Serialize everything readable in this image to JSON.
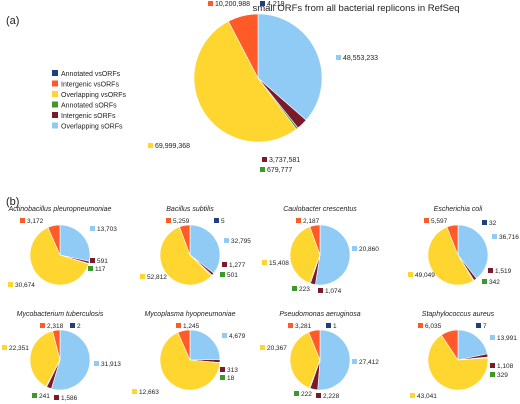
{
  "panel_a_label": "(a)",
  "panel_b_label": "(b)",
  "colors": {
    "annotated_vsorfs": "#1f3f7f",
    "intergenic_vsorfs": "#ff5a28",
    "overlapping_vsorfs": "#ffd530",
    "annotated_sorfs": "#3b9a2a",
    "intergenic_sorfs": "#7a1a2a",
    "overlapping_sorfs": "#8fcbf5"
  },
  "chart_data": [
    {
      "type": "pie",
      "title": "small ORFs from all bacterial replicons in RefSeq",
      "legend_placement": "left",
      "legend": [
        {
          "key": "annotated_vsorfs",
          "label": "Annotated vsORFs"
        },
        {
          "key": "intergenic_vsorfs",
          "label": "Intergenic vsORFs"
        },
        {
          "key": "overlapping_vsorfs",
          "label": "Overlapping vsORFs"
        },
        {
          "key": "annotated_sorfs",
          "label": "Annotated sORFs"
        },
        {
          "key": "intergenic_sorfs",
          "label": "Intergenic sORFs"
        },
        {
          "key": "overlapping_sorfs",
          "label": "Overlapping sORFs"
        }
      ],
      "slices": [
        {
          "key": "annotated_vsorfs",
          "value": 4219,
          "label": "4,219"
        },
        {
          "key": "overlapping_sorfs",
          "value": 48553233,
          "label": "48,553,233"
        },
        {
          "key": "intergenic_sorfs",
          "value": 3737581,
          "label": "3,737,581"
        },
        {
          "key": "annotated_sorfs",
          "value": 679777,
          "label": "679,777"
        },
        {
          "key": "overlapping_vsorfs",
          "value": 69999368,
          "label": "69,999,368"
        },
        {
          "key": "intergenic_vsorfs",
          "value": 10200988,
          "label": "10,200,988"
        }
      ]
    },
    {
      "type": "pie",
      "title": "Actinobacillus pleuropneumoniae",
      "slices": [
        {
          "key": "annotated_vsorfs",
          "value": 0,
          "label": ""
        },
        {
          "key": "overlapping_sorfs",
          "value": 13703,
          "label": "13,703"
        },
        {
          "key": "intergenic_sorfs",
          "value": 591,
          "label": "591"
        },
        {
          "key": "annotated_sorfs",
          "value": 117,
          "label": "117"
        },
        {
          "key": "overlapping_vsorfs",
          "value": 30674,
          "label": "30,674"
        },
        {
          "key": "intergenic_vsorfs",
          "value": 3172,
          "label": "3,172"
        }
      ]
    },
    {
      "type": "pie",
      "title": "Bacillus subtilis",
      "slices": [
        {
          "key": "annotated_vsorfs",
          "value": 5,
          "label": "5"
        },
        {
          "key": "overlapping_sorfs",
          "value": 32795,
          "label": "32,795"
        },
        {
          "key": "intergenic_sorfs",
          "value": 1277,
          "label": "1,277"
        },
        {
          "key": "annotated_sorfs",
          "value": 501,
          "label": "501"
        },
        {
          "key": "overlapping_vsorfs",
          "value": 52812,
          "label": "52,812"
        },
        {
          "key": "intergenic_vsorfs",
          "value": 5259,
          "label": "5,259"
        }
      ]
    },
    {
      "type": "pie",
      "title": "Caulobacter crescentus",
      "slices": [
        {
          "key": "annotated_vsorfs",
          "value": 0,
          "label": ""
        },
        {
          "key": "overlapping_sorfs",
          "value": 20860,
          "label": "20,860"
        },
        {
          "key": "intergenic_sorfs",
          "value": 1074,
          "label": "1,074"
        },
        {
          "key": "annotated_sorfs",
          "value": 223,
          "label": "223"
        },
        {
          "key": "overlapping_vsorfs",
          "value": 15408,
          "label": "15,408"
        },
        {
          "key": "intergenic_vsorfs",
          "value": 2187,
          "label": "2,187"
        }
      ]
    },
    {
      "type": "pie",
      "title": "Escherichia coli",
      "slices": [
        {
          "key": "annotated_vsorfs",
          "value": 32,
          "label": "32"
        },
        {
          "key": "overlapping_sorfs",
          "value": 36716,
          "label": "36,716"
        },
        {
          "key": "intergenic_sorfs",
          "value": 1519,
          "label": "1,519"
        },
        {
          "key": "annotated_sorfs",
          "value": 342,
          "label": "342"
        },
        {
          "key": "overlapping_vsorfs",
          "value": 49049,
          "label": "49,049"
        },
        {
          "key": "intergenic_vsorfs",
          "value": 5597,
          "label": "5,597"
        }
      ]
    },
    {
      "type": "pie",
      "title": "Mycobacterium tuberculosis",
      "slices": [
        {
          "key": "annotated_vsorfs",
          "value": 2,
          "label": "2"
        },
        {
          "key": "overlapping_sorfs",
          "value": 31913,
          "label": "31,913"
        },
        {
          "key": "intergenic_sorfs",
          "value": 1586,
          "label": "1,586"
        },
        {
          "key": "annotated_sorfs",
          "value": 241,
          "label": "241"
        },
        {
          "key": "overlapping_vsorfs",
          "value": 22351,
          "label": "22,351"
        },
        {
          "key": "intergenic_vsorfs",
          "value": 2318,
          "label": "2,318"
        }
      ]
    },
    {
      "type": "pie",
      "title": "Mycoplasma hyopneumoniae",
      "slices": [
        {
          "key": "annotated_vsorfs",
          "value": 0,
          "label": ""
        },
        {
          "key": "overlapping_sorfs",
          "value": 4679,
          "label": "4,679"
        },
        {
          "key": "intergenic_sorfs",
          "value": 313,
          "label": "313"
        },
        {
          "key": "annotated_sorfs",
          "value": 18,
          "label": "18"
        },
        {
          "key": "overlapping_vsorfs",
          "value": 12663,
          "label": "12,663"
        },
        {
          "key": "intergenic_vsorfs",
          "value": 1245,
          "label": "1,245"
        }
      ]
    },
    {
      "type": "pie",
      "title": "Pseudomonas aeruginosa",
      "slices": [
        {
          "key": "annotated_vsorfs",
          "value": 1,
          "label": "1"
        },
        {
          "key": "overlapping_sorfs",
          "value": 27412,
          "label": "27,412"
        },
        {
          "key": "intergenic_sorfs",
          "value": 2228,
          "label": "2,228"
        },
        {
          "key": "annotated_sorfs",
          "value": 222,
          "label": "222"
        },
        {
          "key": "overlapping_vsorfs",
          "value": 20367,
          "label": "20,367"
        },
        {
          "key": "intergenic_vsorfs",
          "value": 3281,
          "label": "3,281"
        }
      ]
    },
    {
      "type": "pie",
      "title": "Staphylococcus aureus",
      "slices": [
        {
          "key": "annotated_vsorfs",
          "value": 7,
          "label": "7"
        },
        {
          "key": "overlapping_sorfs",
          "value": 13991,
          "label": "13,991"
        },
        {
          "key": "intergenic_sorfs",
          "value": 1108,
          "label": "1,108"
        },
        {
          "key": "annotated_sorfs",
          "value": 329,
          "label": "329"
        },
        {
          "key": "overlapping_vsorfs",
          "value": 43041,
          "label": "43,041"
        },
        {
          "key": "intergenic_vsorfs",
          "value": 6035,
          "label": "6,035"
        }
      ]
    }
  ]
}
